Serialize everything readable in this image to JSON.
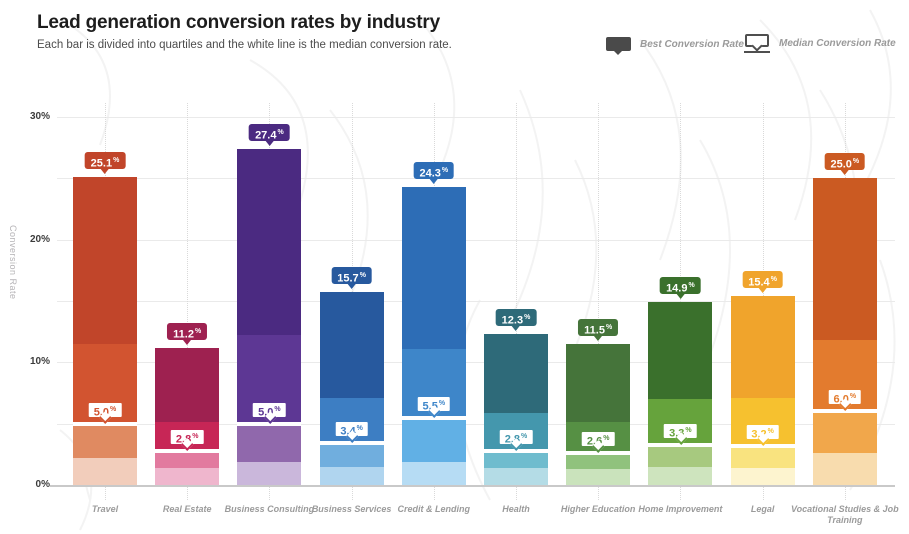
{
  "header": {
    "title": "Lead generation conversion rates by industry",
    "subtitle": "Each bar is divided into quartiles and the white line is the median conversion rate."
  },
  "legend": {
    "best_label": "Best Conversion Rate",
    "median_label": "Median Conversion Rate",
    "icon_color": "#4a4a4a"
  },
  "axis": {
    "y_title": "Conversion Rate",
    "tick_suffix": "%"
  },
  "chart_data": {
    "type": "bar",
    "title": "Lead generation conversion rates by industry",
    "subtitle": "Each bar is divided into quartiles and the white line is the median conversion rate.",
    "ylabel": "Conversion Rate",
    "ylim": [
      0,
      30
    ],
    "y_tick_values": [
      0,
      10,
      20,
      30
    ],
    "gridline_values": [
      5,
      10,
      15,
      20,
      25,
      30
    ],
    "grid": true,
    "legend_position": "top-right",
    "median_line_color": "#ffffff",
    "categories": [
      "Travel",
      "Real Estate",
      "Business Consulting",
      "Business Services",
      "Credit & Lending",
      "Health",
      "Higher Education",
      "Home Improvement",
      "Legal",
      "Vocational Studies & Job Training"
    ],
    "series": [
      {
        "name": "Travel",
        "q1": 2.2,
        "median": 5.0,
        "q3": 11.5,
        "best": 25.1,
        "colors": [
          "#c1452a",
          "#d25430",
          "#e08a61",
          "#f2cdbb"
        ]
      },
      {
        "name": "Real Estate",
        "q1": 1.4,
        "median": 2.8,
        "q3": 5.1,
        "best": 11.2,
        "colors": [
          "#9e2150",
          "#c72656",
          "#e27a9f",
          "#efb6cd"
        ]
      },
      {
        "name": "Business Consulting",
        "q1": 1.9,
        "median": 5.0,
        "q3": 12.2,
        "best": 27.4,
        "colors": [
          "#4b2a81",
          "#5d3794",
          "#9068ac",
          "#cab7db"
        ]
      },
      {
        "name": "Business Services",
        "q1": 1.5,
        "median": 3.4,
        "q3": 7.1,
        "best": 15.7,
        "colors": [
          "#27599e",
          "#3d7ec3",
          "#70aede",
          "#b0d5ef"
        ]
      },
      {
        "name": "Credit & Lending",
        "q1": 1.9,
        "median": 5.5,
        "q3": 11.1,
        "best": 24.3,
        "colors": [
          "#2d6db6",
          "#3e86c9",
          "#61b0e5",
          "#b6dcf4"
        ]
      },
      {
        "name": "Health",
        "q1": 1.4,
        "median": 2.8,
        "q3": 5.9,
        "best": 12.3,
        "colors": [
          "#2e6a79",
          "#4497ad",
          "#6fbcce",
          "#b4dce6"
        ]
      },
      {
        "name": "Higher Education",
        "q1": 1.3,
        "median": 2.6,
        "q3": 5.1,
        "best": 11.5,
        "colors": [
          "#45743a",
          "#569044",
          "#90c27d",
          "#cae3bc"
        ]
      },
      {
        "name": "Home Improvement",
        "q1": 1.5,
        "median": 3.3,
        "q3": 7.0,
        "best": 14.9,
        "colors": [
          "#3a702c",
          "#66a33c",
          "#a7c97f",
          "#cee4be"
        ]
      },
      {
        "name": "Legal",
        "q1": 1.4,
        "median": 3.2,
        "q3": 7.1,
        "best": 15.4,
        "colors": [
          "#f0a42c",
          "#f6c12f",
          "#f9e37f",
          "#fdf4cf"
        ]
      },
      {
        "name": "Vocational Studies & Job Training",
        "q1": 2.6,
        "median": 6.0,
        "q3": 11.8,
        "best": 25.0,
        "colors": [
          "#cb5a22",
          "#e37b2e",
          "#f1a74b",
          "#f8dcae"
        ]
      }
    ]
  }
}
